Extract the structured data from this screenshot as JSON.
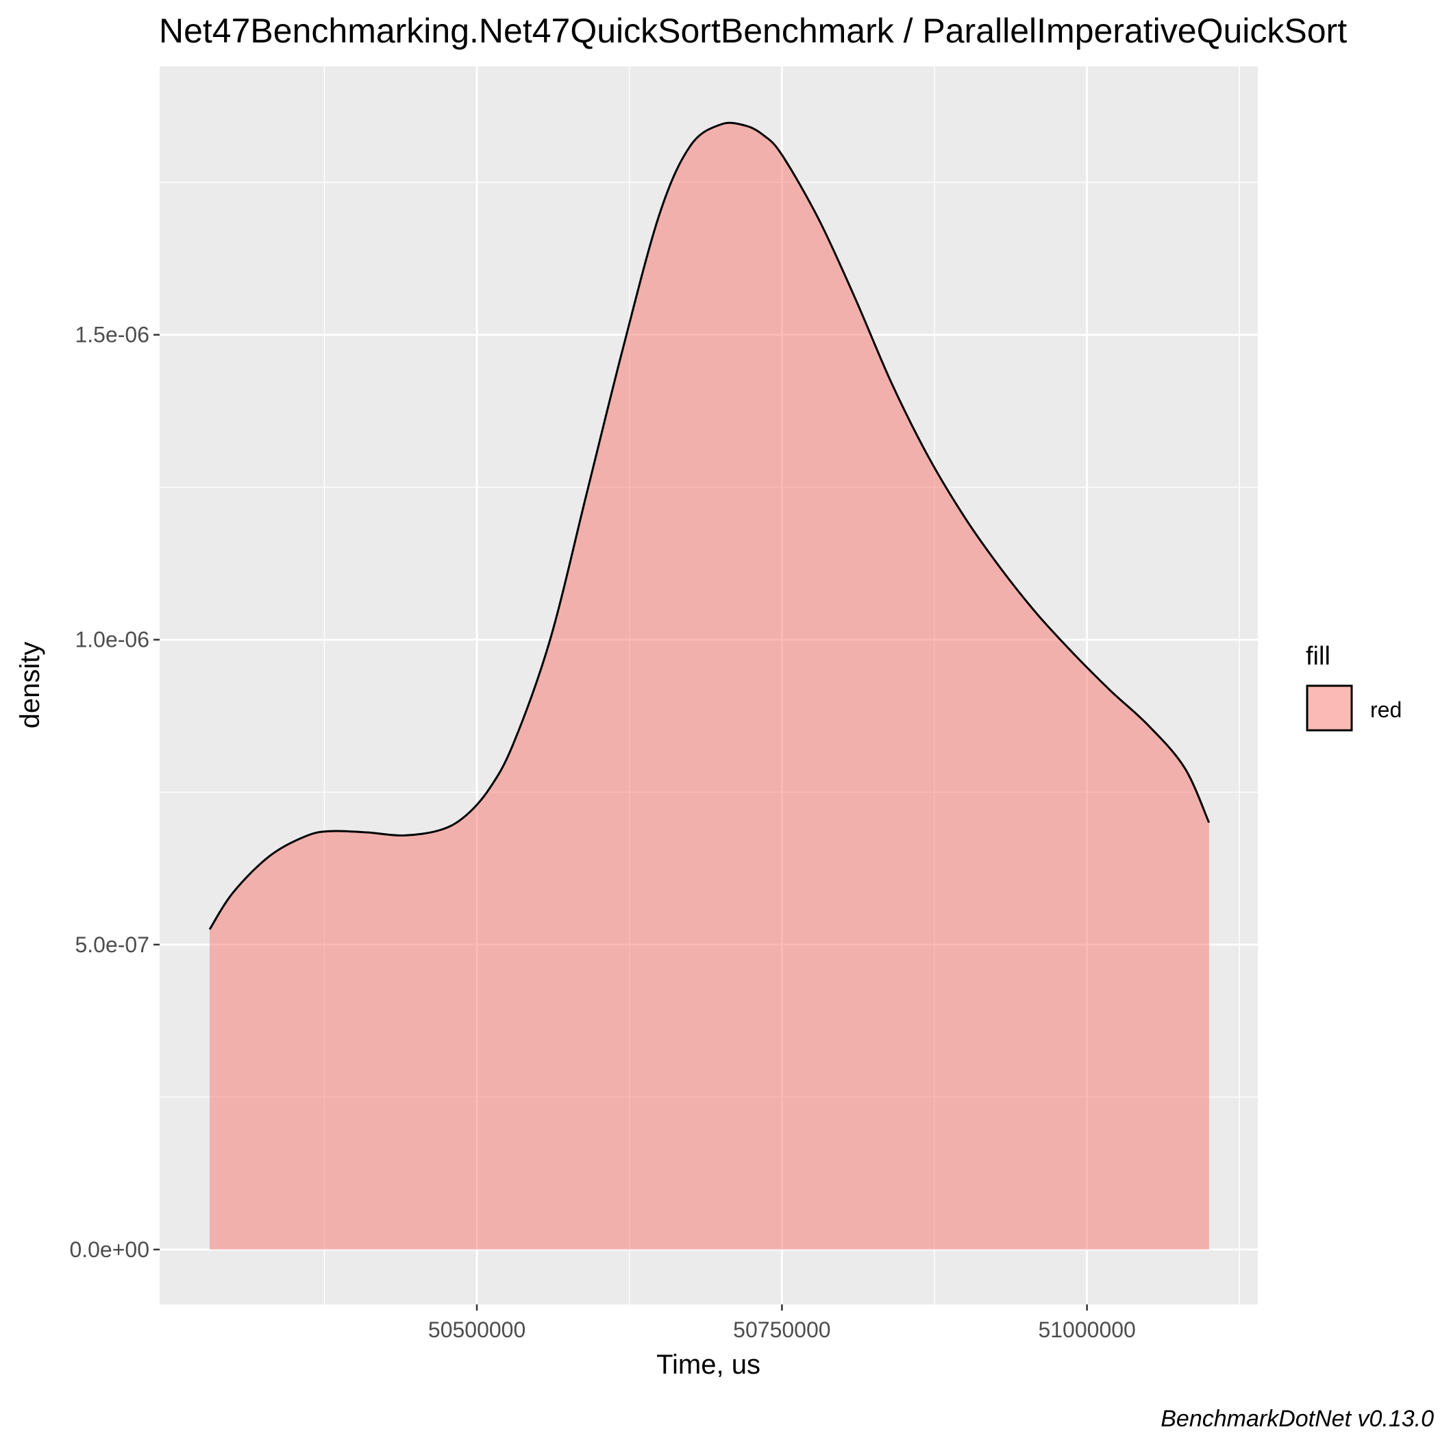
{
  "chart_data": {
    "type": "area",
    "title": "Net47Benchmarking.Net47QuickSortBenchmark / ParallelImperativeQuickSort",
    "xlabel": "Time, us",
    "ylabel": "density",
    "caption": "BenchmarkDotNet v0.13.0",
    "xlim": [
      50240000,
      51140000
    ],
    "ylim": [
      -9e-08,
      1.94e-06
    ],
    "x_ticks": [
      {
        "value": 50500000,
        "label": "50500000"
      },
      {
        "value": 50750000,
        "label": "50750000"
      },
      {
        "value": 51000000,
        "label": "51000000"
      }
    ],
    "x_minor": [
      50375000,
      50625000,
      50875000,
      51125000
    ],
    "y_ticks": [
      {
        "value": 0,
        "label": "0.0e+00"
      },
      {
        "value": 5e-07,
        "label": "5.0e-07"
      },
      {
        "value": 1e-06,
        "label": "1.0e-06"
      },
      {
        "value": 1.5e-06,
        "label": "1.5e-06"
      }
    ],
    "y_minor": [
      2.5e-07,
      7.5e-07,
      1.25e-06,
      1.75e-06
    ],
    "grid": true,
    "legend": {
      "title": "fill",
      "entries": [
        "red"
      ],
      "position": "right"
    },
    "series": [
      {
        "name": "red",
        "color": "#F8766D",
        "x": [
          50281000,
          50300000,
          50330000,
          50360000,
          50380000,
          50410000,
          50440000,
          50470000,
          50490000,
          50510000,
          50530000,
          50560000,
          50590000,
          50620000,
          50650000,
          50675000,
          50700000,
          50720000,
          50735000,
          50750000,
          50780000,
          50810000,
          50840000,
          50870000,
          50900000,
          50930000,
          50960000,
          50990000,
          51020000,
          51050000,
          51080000,
          51100000
        ],
        "y": [
          5.25e-07,
          5.85e-07,
          6.45e-07,
          6.78e-07,
          6.86e-07,
          6.84e-07,
          6.79e-07,
          6.88e-07,
          7.1e-07,
          7.55e-07,
          8.3e-07,
          1e-06,
          1.24e-06,
          1.48e-06,
          1.7e-06,
          1.81e-06,
          1.845e-06,
          1.843e-06,
          1.827e-06,
          1.795e-06,
          1.69e-06,
          1.56e-06,
          1.42e-06,
          1.3e-06,
          1.2e-06,
          1.115e-06,
          1.04e-06,
          9.75e-07,
          9.15e-07,
          8.6e-07,
          7.9e-07,
          7e-07
        ]
      }
    ]
  }
}
